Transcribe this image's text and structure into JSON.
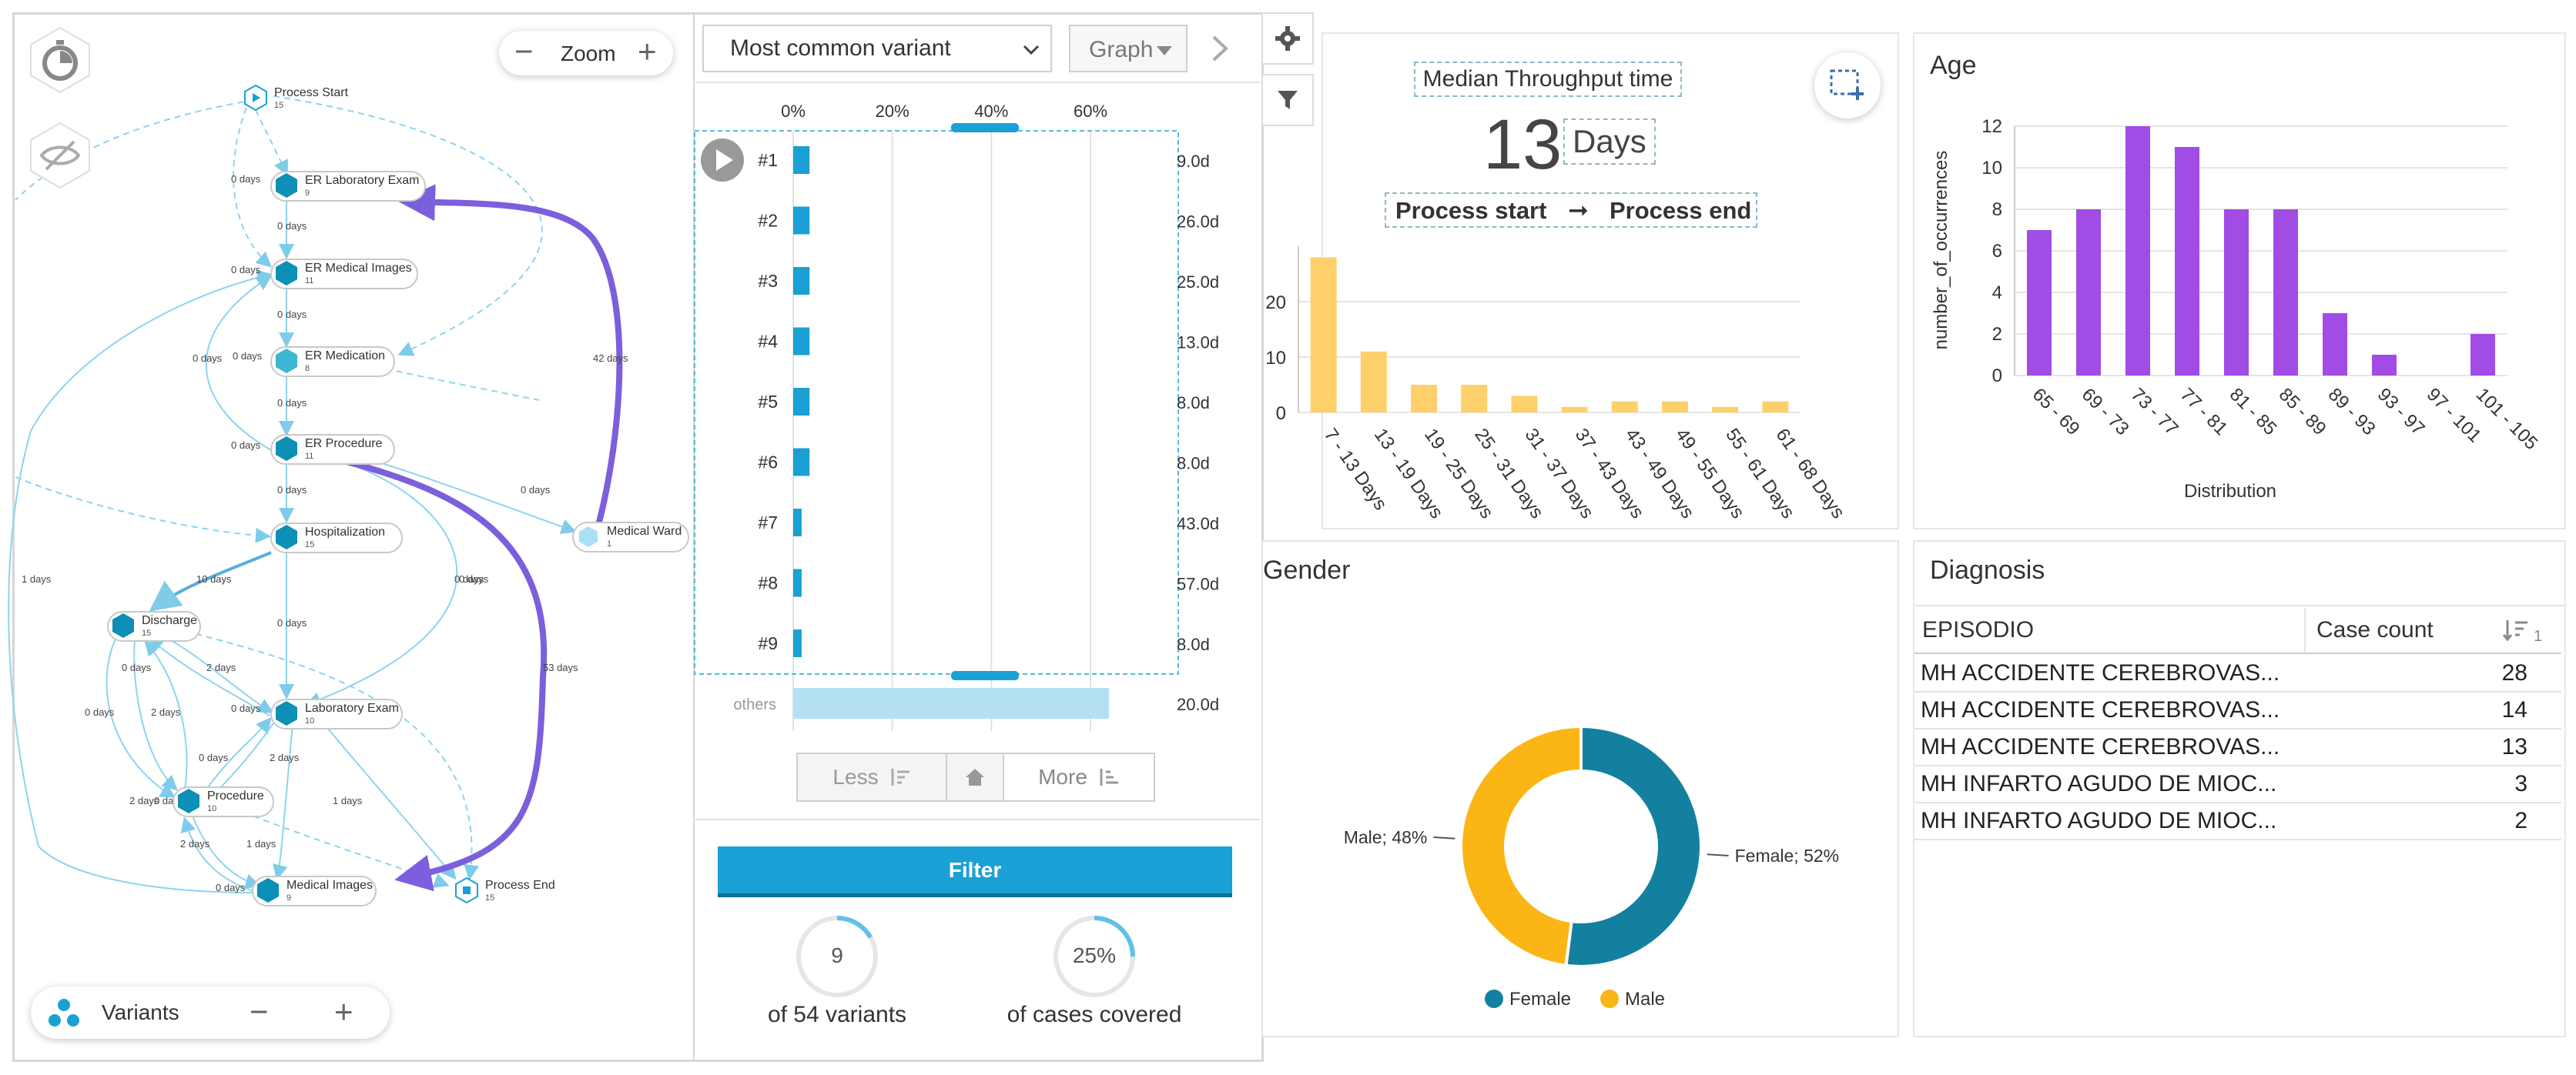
{
  "process_map": {
    "zoom_label": "Zoom",
    "variants_label": "Variants",
    "nodes": [
      {
        "label": "Process Start",
        "count": "15"
      },
      {
        "label": "ER Laboratory Exam",
        "count": "9"
      },
      {
        "label": "ER Medical Images",
        "count": "11"
      },
      {
        "label": "ER Medication",
        "count": "8"
      },
      {
        "label": "ER Procedure",
        "count": "11"
      },
      {
        "label": "Medical Ward",
        "count": "1"
      },
      {
        "label": "Hospitalization",
        "count": "15"
      },
      {
        "label": "Discharge",
        "count": "15"
      },
      {
        "label": "Laboratory Exam",
        "count": "10"
      },
      {
        "label": "Procedure",
        "count": "10"
      },
      {
        "label": "Medical Images",
        "count": "9"
      },
      {
        "label": "Process End",
        "count": "15"
      }
    ],
    "edge_labels": [
      "0 days",
      "0 days",
      "0 days",
      "0 days",
      "0 days",
      "0 days",
      "0 days",
      "0 days",
      "0 days",
      "42 days",
      "0 days",
      "0 days",
      "0 days",
      "1 days",
      "10 days",
      "0 days",
      "53 days",
      "0 days",
      "2 days",
      "0 days",
      "2 days",
      "0 days",
      "2 days",
      "0 days",
      "2 days",
      "1 days",
      "2 days",
      "1 days",
      "0 days",
      "0 days"
    ]
  },
  "variants": {
    "dropdown_value": "Most common variant",
    "view_value": "Graph",
    "axis_ticks": [
      "0%",
      "20%",
      "40%",
      "60%"
    ],
    "rows": [
      {
        "rank": "#1",
        "pct": 3.3,
        "duration": "9.0d"
      },
      {
        "rank": "#2",
        "pct": 3.3,
        "duration": "26.0d"
      },
      {
        "rank": "#3",
        "pct": 3.3,
        "duration": "25.0d"
      },
      {
        "rank": "#4",
        "pct": 3.3,
        "duration": "13.0d"
      },
      {
        "rank": "#5",
        "pct": 3.3,
        "duration": "8.0d"
      },
      {
        "rank": "#6",
        "pct": 3.3,
        "duration": "8.0d"
      },
      {
        "rank": "#7",
        "pct": 1.7,
        "duration": "43.0d"
      },
      {
        "rank": "#8",
        "pct": 1.7,
        "duration": "57.0d"
      },
      {
        "rank": "#9",
        "pct": 1.7,
        "duration": "8.0d"
      }
    ],
    "others": {
      "label": "others",
      "pct": 75,
      "duration": "20.0d"
    },
    "less_label": "Less",
    "more_label": "More",
    "filter_label": "Filter",
    "variant_count": "9",
    "variant_caption": "of 54 variants",
    "variant_fraction": 0.1667,
    "cases_pct": "25%",
    "cases_caption": "of cases covered",
    "cases_fraction": 0.25
  },
  "throughput": {
    "title": "Median Throughput time",
    "value": "13",
    "unit": "Days",
    "from": "Process start",
    "to": "Process end",
    "chart_data": {
      "type": "bar",
      "categories": [
        "7 - 13 Days",
        "13 - 19 Days",
        "19 - 25 Days",
        "25 - 31 Days",
        "31 - 37 Days",
        "37 - 43 Days",
        "43 - 49 Days",
        "49 - 55 Days",
        "55 - 61 Days",
        "61 - 68 Days"
      ],
      "values": [
        28,
        11,
        5,
        5,
        3,
        1,
        2,
        2,
        1,
        2
      ],
      "ylim": [
        0,
        30
      ],
      "yticks": [
        "0",
        "10",
        "20"
      ],
      "color": "#fdd06b"
    }
  },
  "age": {
    "title": "Age",
    "chart_data": {
      "type": "bar",
      "categories": [
        "65 - 69",
        "69 - 73",
        "73 - 77",
        "77 - 81",
        "81 - 85",
        "85 - 89",
        "89 - 93",
        "93 - 97",
        "97 - 101",
        "101 - 105"
      ],
      "values": [
        7,
        8,
        12,
        11,
        8,
        8,
        3,
        1,
        0,
        2
      ],
      "ylim": [
        0,
        12
      ],
      "yticks": [
        "0",
        "2",
        "4",
        "6",
        "8",
        "10",
        "12"
      ],
      "xlabel": "Distribution",
      "ylabel": "number_of_occurrences",
      "color": "#a24ce6"
    }
  },
  "gender": {
    "title": "Gender",
    "chart_data": {
      "type": "pie",
      "slices": [
        {
          "name": "Female",
          "value": 52,
          "label": "Female; 52%",
          "color": "#13809f"
        },
        {
          "name": "Male",
          "value": 48,
          "label": "Male; 48%",
          "color": "#fbb514"
        }
      ],
      "legend": [
        "Female",
        "Male"
      ]
    }
  },
  "diagnosis": {
    "title": "Diagnosis",
    "col1": "EPISODIO",
    "col2": "Case count",
    "sort_badge": "1",
    "rows": [
      {
        "name": "MH ACCIDENTE CEREBROVAS...",
        "count": "28"
      },
      {
        "name": "MH ACCIDENTE CEREBROVAS...",
        "count": "14"
      },
      {
        "name": "MH ACCIDENTE CEREBROVAS...",
        "count": "13"
      },
      {
        "name": "MH INFARTO AGUDO DE MIOC...",
        "count": "3"
      },
      {
        "name": "MH INFARTO AGUDO DE MIOC...",
        "count": "2"
      }
    ]
  }
}
